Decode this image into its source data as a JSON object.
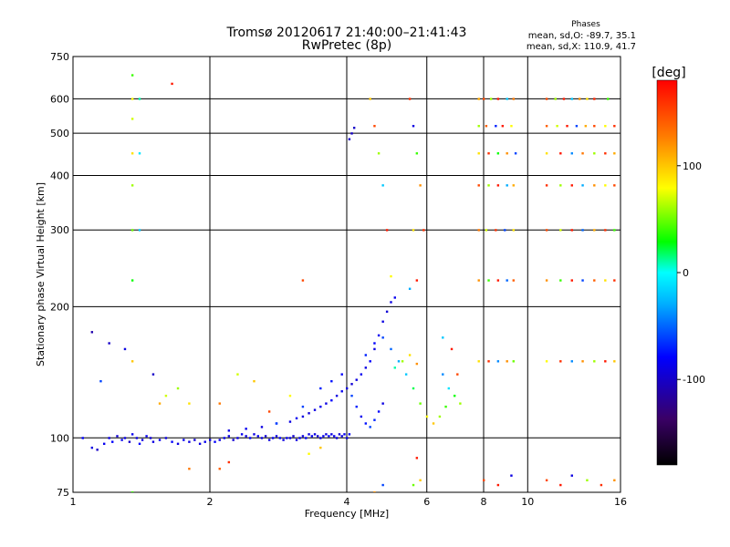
{
  "chart_data": {
    "type": "scatter",
    "title": "Tromsø 20120617 21:40:00–21:41:43",
    "subtitle": "RwPretec (8p)",
    "xlabel": "Frequency [MHz]",
    "ylabel": "Stationary phase Virtual Height [km]",
    "x_scale": "log",
    "y_scale": "log",
    "xlim": [
      1,
      16
    ],
    "ylim": [
      75,
      750
    ],
    "x_ticks": [
      1,
      2,
      4,
      6,
      8,
      10,
      16
    ],
    "x_tick_labels": [
      "1",
      "2",
      "4",
      "6",
      "8",
      "10",
      "16"
    ],
    "y_ticks": [
      75,
      100,
      200,
      300,
      400,
      500,
      600,
      750
    ],
    "y_tick_labels": [
      "75",
      "100",
      "200",
      "300",
      "400",
      "500",
      "600",
      "750"
    ],
    "grid": true,
    "info": {
      "heading": "Phases",
      "line1": "mean, sd,O: -89.7, 35.1",
      "line2": "mean, sd,X: 110.9, 41.7"
    },
    "colorbar": {
      "label": "[deg]",
      "range": [
        -180,
        180
      ],
      "ticks": [
        100,
        0,
        -100
      ],
      "tick_labels": [
        "100",
        "0",
        "-100"
      ]
    },
    "points": [
      [
        1.05,
        100,
        -80
      ],
      [
        1.1,
        95,
        -90
      ],
      [
        1.13,
        94,
        -100
      ],
      [
        1.17,
        97,
        -85
      ],
      [
        1.2,
        100,
        -90
      ],
      [
        1.22,
        98,
        -80
      ],
      [
        1.25,
        101,
        -95
      ],
      [
        1.28,
        99,
        -85
      ],
      [
        1.3,
        100,
        -90
      ],
      [
        1.33,
        98,
        -100
      ],
      [
        1.35,
        102,
        -85
      ],
      [
        1.38,
        100,
        -90
      ],
      [
        1.4,
        97,
        -80
      ],
      [
        1.42,
        99,
        -90
      ],
      [
        1.45,
        101,
        -85
      ],
      [
        1.48,
        100,
        -95
      ],
      [
        1.5,
        98,
        -90
      ],
      [
        1.55,
        99,
        -85
      ],
      [
        1.6,
        100,
        -90
      ],
      [
        1.65,
        98,
        -80
      ],
      [
        1.7,
        97,
        -90
      ],
      [
        1.75,
        99,
        -85
      ],
      [
        1.8,
        98,
        -90
      ],
      [
        1.85,
        99,
        -95
      ],
      [
        1.9,
        97,
        -90
      ],
      [
        1.95,
        98,
        -85
      ],
      [
        2.0,
        99,
        -90
      ],
      [
        2.05,
        98,
        -80
      ],
      [
        2.1,
        99,
        -90
      ],
      [
        2.15,
        100,
        -85
      ],
      [
        2.2,
        101,
        -90
      ],
      [
        2.25,
        99,
        -95
      ],
      [
        2.3,
        100,
        -90
      ],
      [
        2.35,
        102,
        -85
      ],
      [
        2.4,
        101,
        -90
      ],
      [
        2.45,
        100,
        -80
      ],
      [
        2.5,
        102,
        -90
      ],
      [
        2.55,
        101,
        -85
      ],
      [
        2.6,
        100,
        -90
      ],
      [
        2.65,
        101,
        -95
      ],
      [
        2.7,
        99,
        -90
      ],
      [
        2.75,
        100,
        -85
      ],
      [
        2.8,
        101,
        -90
      ],
      [
        2.85,
        100,
        -80
      ],
      [
        2.9,
        99,
        -90
      ],
      [
        2.95,
        100,
        -85
      ],
      [
        3.0,
        100,
        -90
      ],
      [
        3.05,
        101,
        -95
      ],
      [
        3.1,
        99,
        -90
      ],
      [
        3.15,
        100,
        -85
      ],
      [
        3.2,
        101,
        -90
      ],
      [
        3.25,
        100,
        -80
      ],
      [
        3.3,
        102,
        -90
      ],
      [
        3.35,
        101,
        -85
      ],
      [
        3.4,
        102,
        -90
      ],
      [
        3.45,
        101,
        -95
      ],
      [
        3.5,
        100,
        -90
      ],
      [
        3.55,
        101,
        -85
      ],
      [
        3.6,
        102,
        -90
      ],
      [
        3.65,
        101,
        -80
      ],
      [
        3.7,
        102,
        -90
      ],
      [
        3.75,
        101,
        -85
      ],
      [
        3.8,
        100,
        -90
      ],
      [
        3.85,
        102,
        -95
      ],
      [
        3.9,
        101,
        -90
      ],
      [
        3.95,
        102,
        -85
      ],
      [
        4.0,
        100,
        -90
      ],
      [
        4.05,
        102,
        -80
      ],
      [
        2.2,
        104,
        -90
      ],
      [
        2.4,
        105,
        -85
      ],
      [
        2.6,
        106,
        -90
      ],
      [
        2.8,
        108,
        -80
      ],
      [
        3.0,
        109,
        -90
      ],
      [
        3.1,
        111,
        -85
      ],
      [
        3.2,
        112,
        -90
      ],
      [
        3.3,
        114,
        -95
      ],
      [
        3.4,
        116,
        -90
      ],
      [
        3.5,
        118,
        -85
      ],
      [
        3.6,
        120,
        -90
      ],
      [
        3.7,
        122,
        -80
      ],
      [
        3.8,
        125,
        -90
      ],
      [
        3.9,
        128,
        -85
      ],
      [
        4.0,
        130,
        -90
      ],
      [
        4.1,
        133,
        -95
      ],
      [
        4.2,
        136,
        -90
      ],
      [
        4.3,
        140,
        -85
      ],
      [
        4.4,
        145,
        -90
      ],
      [
        4.5,
        150,
        -80
      ],
      [
        4.6,
        160,
        -90
      ],
      [
        4.7,
        172,
        -85
      ],
      [
        4.8,
        185,
        -90
      ],
      [
        4.9,
        195,
        -95
      ],
      [
        5.0,
        205,
        -90
      ],
      [
        5.1,
        210,
        -85
      ],
      [
        3.2,
        118,
        -60
      ],
      [
        3.5,
        130,
        -70
      ],
      [
        3.7,
        135,
        -75
      ],
      [
        3.9,
        140,
        -80
      ],
      [
        4.1,
        125,
        -60
      ],
      [
        4.2,
        118,
        -70
      ],
      [
        4.3,
        112,
        -85
      ],
      [
        4.4,
        108,
        -75
      ],
      [
        4.5,
        106,
        -60
      ],
      [
        4.6,
        110,
        -70
      ],
      [
        4.7,
        115,
        -80
      ],
      [
        4.8,
        120,
        -90
      ],
      [
        4.4,
        155,
        -70
      ],
      [
        4.6,
        165,
        -80
      ],
      [
        4.8,
        170,
        -60
      ],
      [
        5.0,
        160,
        -50
      ],
      [
        5.2,
        150,
        -30
      ],
      [
        5.4,
        140,
        -20
      ],
      [
        5.6,
        130,
        20
      ],
      [
        5.8,
        120,
        50
      ],
      [
        6.0,
        112,
        80
      ],
      [
        6.2,
        108,
        100
      ],
      [
        6.4,
        112,
        60
      ],
      [
        6.6,
        118,
        40
      ],
      [
        5.1,
        145,
        10
      ],
      [
        5.3,
        150,
        60
      ],
      [
        5.5,
        155,
        90
      ],
      [
        5.7,
        148,
        120
      ],
      [
        6.5,
        140,
        -40
      ],
      [
        6.7,
        130,
        -10
      ],
      [
        6.9,
        125,
        30
      ],
      [
        7.1,
        120,
        60
      ],
      [
        7.0,
        140,
        150
      ],
      [
        6.8,
        160,
        170
      ],
      [
        6.5,
        170,
        -20
      ],
      [
        4.05,
        485,
        -100
      ],
      [
        4.1,
        500,
        -100
      ],
      [
        4.15,
        515,
        -100
      ],
      [
        4.5,
        600,
        100
      ],
      [
        4.6,
        520,
        150
      ],
      [
        4.7,
        450,
        60
      ],
      [
        4.8,
        380,
        -20
      ],
      [
        4.9,
        300,
        170
      ],
      [
        5.0,
        235,
        80
      ],
      [
        4.6,
        75,
        120
      ],
      [
        4.8,
        78,
        -60
      ],
      [
        5.5,
        600,
        160
      ],
      [
        5.6,
        520,
        -90
      ],
      [
        5.7,
        450,
        40
      ],
      [
        5.8,
        380,
        120
      ],
      [
        5.6,
        300,
        90
      ],
      [
        5.9,
        300,
        160
      ],
      [
        5.7,
        230,
        170
      ],
      [
        5.5,
        220,
        -30
      ],
      [
        5.8,
        80,
        100
      ],
      [
        5.6,
        78,
        50
      ],
      [
        5.7,
        90,
        170
      ],
      [
        7.8,
        600,
        110
      ],
      [
        8.0,
        600,
        150
      ],
      [
        8.3,
        600,
        60
      ],
      [
        8.6,
        600,
        170
      ],
      [
        9.0,
        600,
        -20
      ],
      [
        9.3,
        600,
        130
      ],
      [
        7.8,
        520,
        60
      ],
      [
        8.1,
        520,
        140
      ],
      [
        8.5,
        520,
        -70
      ],
      [
        8.8,
        520,
        170
      ],
      [
        9.2,
        520,
        80
      ],
      [
        7.8,
        450,
        90
      ],
      [
        8.2,
        450,
        160
      ],
      [
        8.6,
        450,
        30
      ],
      [
        9.0,
        450,
        120
      ],
      [
        9.4,
        450,
        -60
      ],
      [
        7.8,
        380,
        150
      ],
      [
        8.2,
        380,
        60
      ],
      [
        8.6,
        380,
        170
      ],
      [
        9.0,
        380,
        -30
      ],
      [
        9.3,
        380,
        110
      ],
      [
        7.8,
        300,
        130
      ],
      [
        8.1,
        300,
        70
      ],
      [
        8.5,
        300,
        160
      ],
      [
        8.9,
        300,
        -60
      ],
      [
        9.3,
        300,
        90
      ],
      [
        7.8,
        230,
        120
      ],
      [
        8.2,
        230,
        40
      ],
      [
        8.6,
        230,
        170
      ],
      [
        9.0,
        230,
        -50
      ],
      [
        9.3,
        230,
        140
      ],
      [
        7.8,
        150,
        90
      ],
      [
        8.2,
        150,
        160
      ],
      [
        8.6,
        150,
        -40
      ],
      [
        9.0,
        150,
        120
      ],
      [
        9.3,
        150,
        50
      ],
      [
        8.0,
        80,
        150
      ],
      [
        8.6,
        78,
        170
      ],
      [
        9.2,
        82,
        -90
      ],
      [
        11,
        600,
        150
      ],
      [
        11.5,
        600,
        60
      ],
      [
        12,
        600,
        170
      ],
      [
        12.5,
        600,
        -20
      ],
      [
        13,
        600,
        120
      ],
      [
        13.5,
        600,
        90
      ],
      [
        14,
        600,
        165
      ],
      [
        15,
        600,
        40
      ],
      [
        11,
        520,
        140
      ],
      [
        11.6,
        520,
        70
      ],
      [
        12.2,
        520,
        170
      ],
      [
        12.8,
        520,
        -60
      ],
      [
        13.4,
        520,
        110
      ],
      [
        14,
        520,
        150
      ],
      [
        14.8,
        520,
        80
      ],
      [
        15.5,
        520,
        160
      ],
      [
        11,
        450,
        90
      ],
      [
        11.8,
        450,
        170
      ],
      [
        12.5,
        450,
        -40
      ],
      [
        13.2,
        450,
        130
      ],
      [
        14,
        450,
        60
      ],
      [
        14.8,
        450,
        160
      ],
      [
        15.5,
        450,
        110
      ],
      [
        11,
        380,
        160
      ],
      [
        11.8,
        380,
        60
      ],
      [
        12.5,
        380,
        170
      ],
      [
        13.2,
        380,
        -30
      ],
      [
        14,
        380,
        120
      ],
      [
        14.8,
        380,
        80
      ],
      [
        15.5,
        380,
        150
      ],
      [
        11,
        300,
        150
      ],
      [
        11.8,
        300,
        70
      ],
      [
        12.5,
        300,
        170
      ],
      [
        13.2,
        300,
        -50
      ],
      [
        14,
        300,
        110
      ],
      [
        14.8,
        300,
        160
      ],
      [
        15.5,
        300,
        40
      ],
      [
        11,
        230,
        120
      ],
      [
        11.8,
        230,
        40
      ],
      [
        12.5,
        230,
        170
      ],
      [
        13.2,
        230,
        -60
      ],
      [
        14,
        230,
        140
      ],
      [
        14.8,
        230,
        90
      ],
      [
        15.5,
        230,
        160
      ],
      [
        11,
        150,
        80
      ],
      [
        11.8,
        150,
        160
      ],
      [
        12.5,
        150,
        -40
      ],
      [
        13.2,
        150,
        120
      ],
      [
        14,
        150,
        60
      ],
      [
        14.8,
        150,
        170
      ],
      [
        15.5,
        150,
        100
      ],
      [
        11,
        80,
        150
      ],
      [
        11.8,
        78,
        170
      ],
      [
        12.5,
        82,
        -90
      ],
      [
        13.5,
        80,
        60
      ],
      [
        14.5,
        78,
        160
      ],
      [
        15.5,
        80,
        120
      ],
      [
        1.35,
        680,
        40
      ],
      [
        1.35,
        600,
        80
      ],
      [
        1.35,
        540,
        70
      ],
      [
        1.35,
        450,
        90
      ],
      [
        1.35,
        380,
        60
      ],
      [
        1.35,
        300,
        50
      ],
      [
        1.35,
        230,
        30
      ],
      [
        1.35,
        150,
        100
      ],
      [
        1.4,
        450,
        -10
      ],
      [
        1.4,
        600,
        10
      ],
      [
        1.4,
        300,
        -20
      ],
      [
        1.35,
        75,
        40
      ],
      [
        1.55,
        120,
        110
      ],
      [
        1.6,
        125,
        70
      ],
      [
        1.7,
        130,
        60
      ],
      [
        1.8,
        120,
        90
      ],
      [
        1.65,
        650,
        170
      ],
      [
        1.1,
        175,
        -110
      ],
      [
        1.2,
        165,
        -100
      ],
      [
        1.15,
        135,
        -60
      ],
      [
        1.3,
        160,
        -90
      ],
      [
        1.5,
        140,
        -100
      ],
      [
        2.1,
        120,
        130
      ],
      [
        2.3,
        140,
        70
      ],
      [
        2.5,
        135,
        100
      ],
      [
        2.7,
        115,
        150
      ],
      [
        3.0,
        125,
        80
      ],
      [
        3.2,
        230,
        150
      ],
      [
        2.8,
        108,
        -60
      ],
      [
        3.5,
        95,
        100
      ],
      [
        3.3,
        92,
        80
      ],
      [
        2.2,
        88,
        160
      ],
      [
        2.1,
        85,
        140
      ],
      [
        1.8,
        85,
        130
      ]
    ]
  }
}
